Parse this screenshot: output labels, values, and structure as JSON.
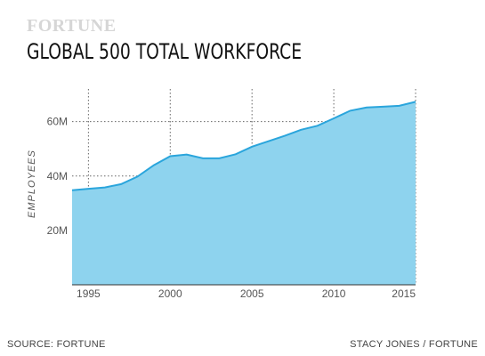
{
  "header": {
    "brand": "FORTUNE",
    "title": "GLOBAL 500 TOTAL WORKFORCE"
  },
  "footer": {
    "source": "SOURCE: FORTUNE",
    "credit": "STACY JONES / FORTUNE"
  },
  "colors": {
    "area_fill": "#8ed3ee",
    "line": "#2aa5dc"
  },
  "chart_data": {
    "type": "area",
    "title": "GLOBAL 500 TOTAL WORKFORCE",
    "xlabel": "",
    "ylabel": "EMPLOYEES",
    "xlim": [
      1994,
      2015
    ],
    "ylim": [
      0,
      72
    ],
    "x_ticks": [
      1995,
      2000,
      2005,
      2010,
      2015
    ],
    "x_tick_labels": [
      "1995",
      "2000",
      "2005",
      "2010",
      "2015"
    ],
    "y_ticks": [
      20,
      40,
      60
    ],
    "y_tick_labels": [
      "20M",
      "40M",
      "60M"
    ],
    "grid": "dotted",
    "x": [
      1994,
      1995,
      1996,
      1997,
      1998,
      1999,
      2000,
      2001,
      2002,
      2003,
      2004,
      2005,
      2006,
      2007,
      2008,
      2009,
      2010,
      2011,
      2012,
      2013,
      2014,
      2015
    ],
    "values": [
      34.8,
      35.3,
      35.8,
      37,
      39.8,
      44,
      47.3,
      47.9,
      46.5,
      46.5,
      48,
      50.8,
      52.8,
      54.8,
      57,
      58.5,
      61.2,
      64,
      65.2,
      65.5,
      65.8,
      67.3
    ]
  }
}
